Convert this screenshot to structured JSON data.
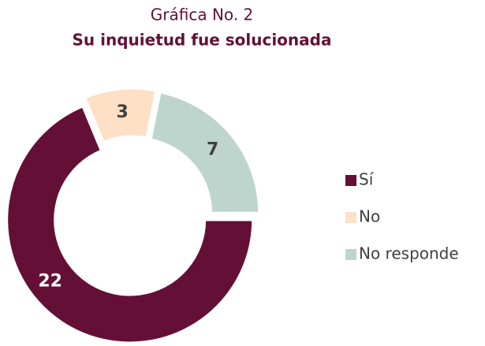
{
  "chart_data": {
    "type": "donut",
    "title": "Gráfica No. 2",
    "subtitle": "Su inquietud fue solucionada",
    "categories": [
      "Sí",
      "No",
      "No responde"
    ],
    "values": [
      22,
      3,
      7
    ],
    "colors": [
      "#641036",
      "#fde0c5",
      "#bdd5cc"
    ],
    "legend": "right"
  }
}
